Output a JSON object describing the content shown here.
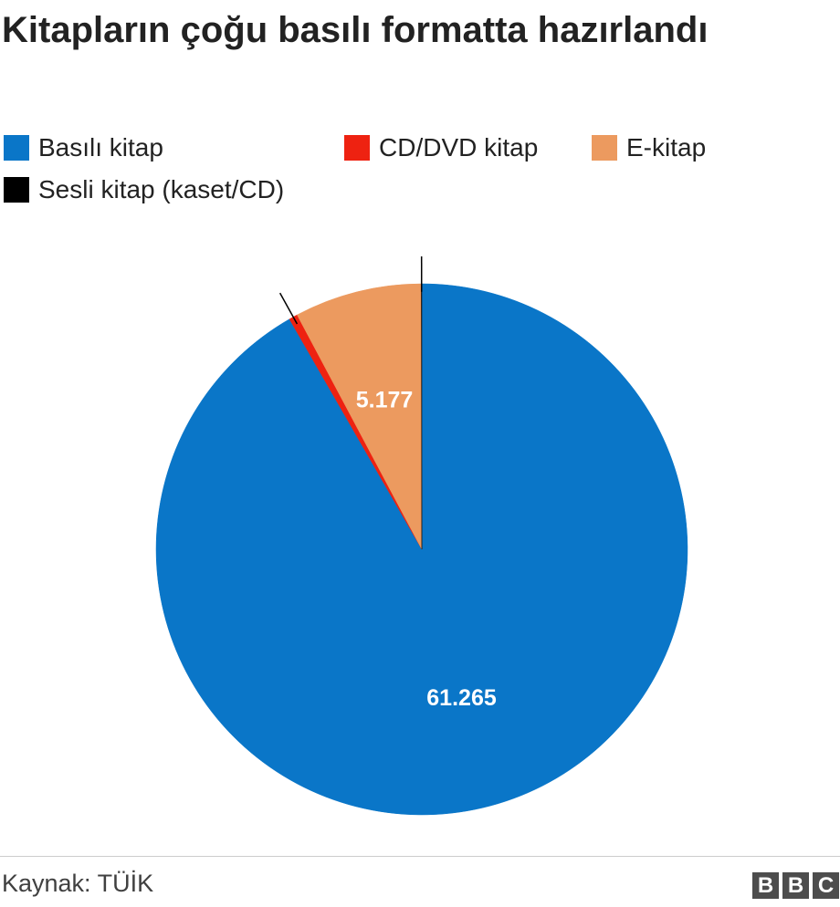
{
  "title": "Kitapların çoğu basılı formatta hazırlandı",
  "source": "Kaynak: TÜİK",
  "logo": {
    "letters": [
      "B",
      "B",
      "C"
    ]
  },
  "chart_data": {
    "type": "pie",
    "title": "Kitapların çoğu basılı formatta hazırlandı",
    "legend_position": "top",
    "series": [
      {
        "name": "Basılı kitap",
        "value": 61265,
        "label": "61.265",
        "color": "#0a76c8"
      },
      {
        "name": "CD/DVD kitap",
        "value": 350,
        "label": "",
        "color": "#ee2211"
      },
      {
        "name": "E-kitap",
        "value": 5177,
        "label": "5.177",
        "color": "#ec9a5f"
      },
      {
        "name": "Sesli kitap (kaset/CD)",
        "value": 20,
        "label": "",
        "color": "#000000"
      }
    ]
  }
}
